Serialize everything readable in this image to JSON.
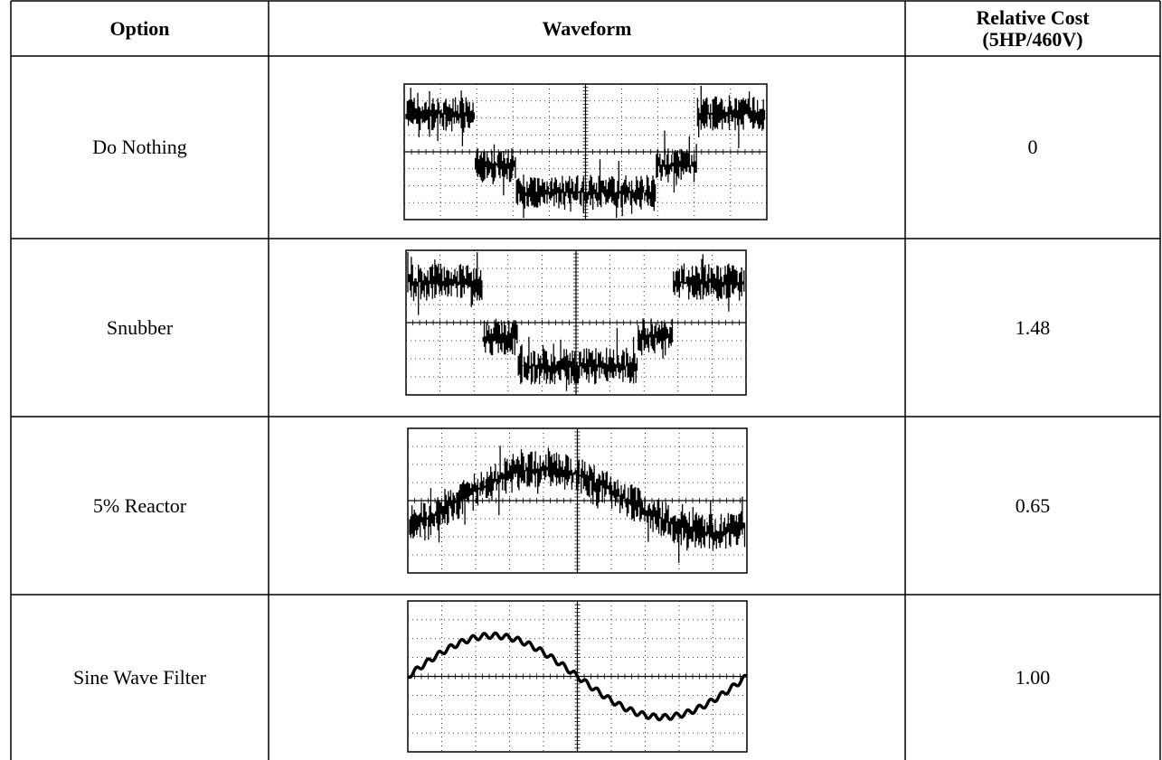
{
  "table": {
    "header": [
      "Option",
      "Waveform",
      "Relative Cost (5HP/460V)"
    ],
    "rows": [
      {
        "option": "Do Nothing",
        "cost": "0"
      },
      {
        "option": "Snubber",
        "cost": "1.48"
      },
      {
        "option": "5% Reactor",
        "cost": "0.65"
      },
      {
        "option": "Sine Wave Filter",
        "cost": "1.00"
      }
    ]
  }
}
